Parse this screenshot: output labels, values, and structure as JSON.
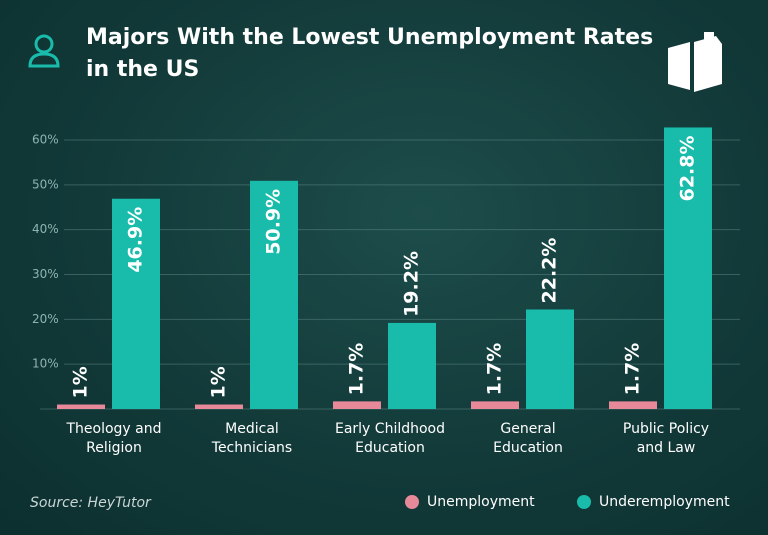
{
  "chart_data": {
    "type": "bar",
    "title": "Majors With the Lowest Unemployment Rates in the US",
    "source": "Source: HeyTutor",
    "categories": [
      "Theology and Religion",
      "Medical Technicians",
      "Early Childhood Education",
      "General Education",
      "Public Policy and Law"
    ],
    "series": [
      {
        "name": "Unemployment",
        "color": "#e8899a",
        "values": [
          1,
          1,
          1.7,
          1.7,
          1.7
        ],
        "value_labels": [
          "1%",
          "1%",
          "1.7%",
          "1.7%",
          "1.7%"
        ]
      },
      {
        "name": "Underemployment",
        "color": "#19bcaa",
        "values": [
          46.9,
          50.9,
          19.2,
          22.2,
          62.8
        ],
        "value_labels": [
          "46.9%",
          "50.9%",
          "19.2%",
          "22.2%",
          "62.8%"
        ]
      }
    ],
    "ylim": [
      0,
      65
    ],
    "yticks": [
      {
        "value": 10,
        "label": "10%"
      },
      {
        "value": 20,
        "label": "20%"
      },
      {
        "value": 30,
        "label": "30%"
      },
      {
        "value": 40,
        "label": "40%"
      },
      {
        "value": 50,
        "label": "50%"
      },
      {
        "value": 60,
        "label": "60%"
      }
    ],
    "grid": true
  }
}
